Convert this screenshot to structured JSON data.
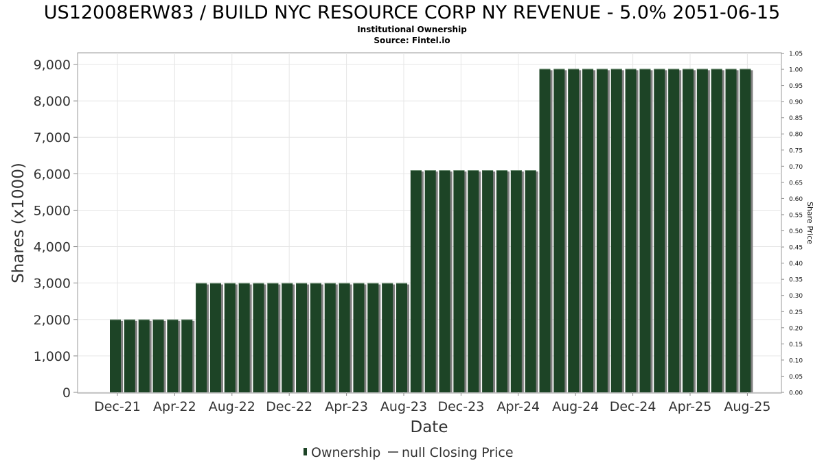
{
  "header": {
    "title": "US12008ERW83 / BUILD NYC RESOURCE CORP NY REVENUE - 5.0% 2051-06-15",
    "subtitle": "Institutional Ownership",
    "source": "Source: Fintel.io"
  },
  "legend": {
    "ownership_label": "Ownership",
    "price_label": "null Closing Price"
  },
  "colors": {
    "bar": "#1d4426",
    "bar_shadow": "#7f7f7f",
    "grid": "#e6e6e6",
    "axis": "#888888"
  },
  "chart_data": {
    "type": "bar",
    "xlabel": "Date",
    "ylabel": "Shares (x1000)",
    "y2label": "Share Price",
    "ylim": [
      0,
      9000
    ],
    "y2lim": [
      0,
      1.05
    ],
    "grid": true,
    "legend_position": "bottom",
    "x_tick_labels": [
      "Dec-21",
      "Apr-22",
      "Aug-22",
      "Dec-22",
      "Apr-23",
      "Aug-23",
      "Dec-23",
      "Apr-24",
      "Aug-24",
      "Dec-24",
      "Apr-25",
      "Aug-25"
    ],
    "y_tick_labels": [
      "0",
      "1,000",
      "2,000",
      "3,000",
      "4,000",
      "5,000",
      "6,000",
      "7,000",
      "8,000",
      "9,000"
    ],
    "y2_tick_labels": [
      "0.00",
      "0.05",
      "0.10",
      "0.15",
      "0.20",
      "0.25",
      "0.30",
      "0.35",
      "0.40",
      "0.45",
      "0.50",
      "0.55",
      "0.60",
      "0.65",
      "0.70",
      "0.75",
      "0.80",
      "0.85",
      "0.90",
      "0.95",
      "1.00",
      "1.05"
    ],
    "series": [
      {
        "name": "Ownership",
        "values": [
          2000,
          2000,
          2000,
          2000,
          2000,
          2000,
          3000,
          3000,
          3000,
          3000,
          3000,
          3000,
          3000,
          3000,
          3000,
          3000,
          3000,
          3000,
          3000,
          3000,
          3000,
          6100,
          6100,
          6100,
          6100,
          6100,
          6100,
          6100,
          6100,
          6100,
          8880,
          8880,
          8880,
          8880,
          8880,
          8880,
          8880,
          8880,
          8880,
          8880,
          8880,
          8880,
          8880,
          8880,
          8880
        ]
      }
    ]
  }
}
